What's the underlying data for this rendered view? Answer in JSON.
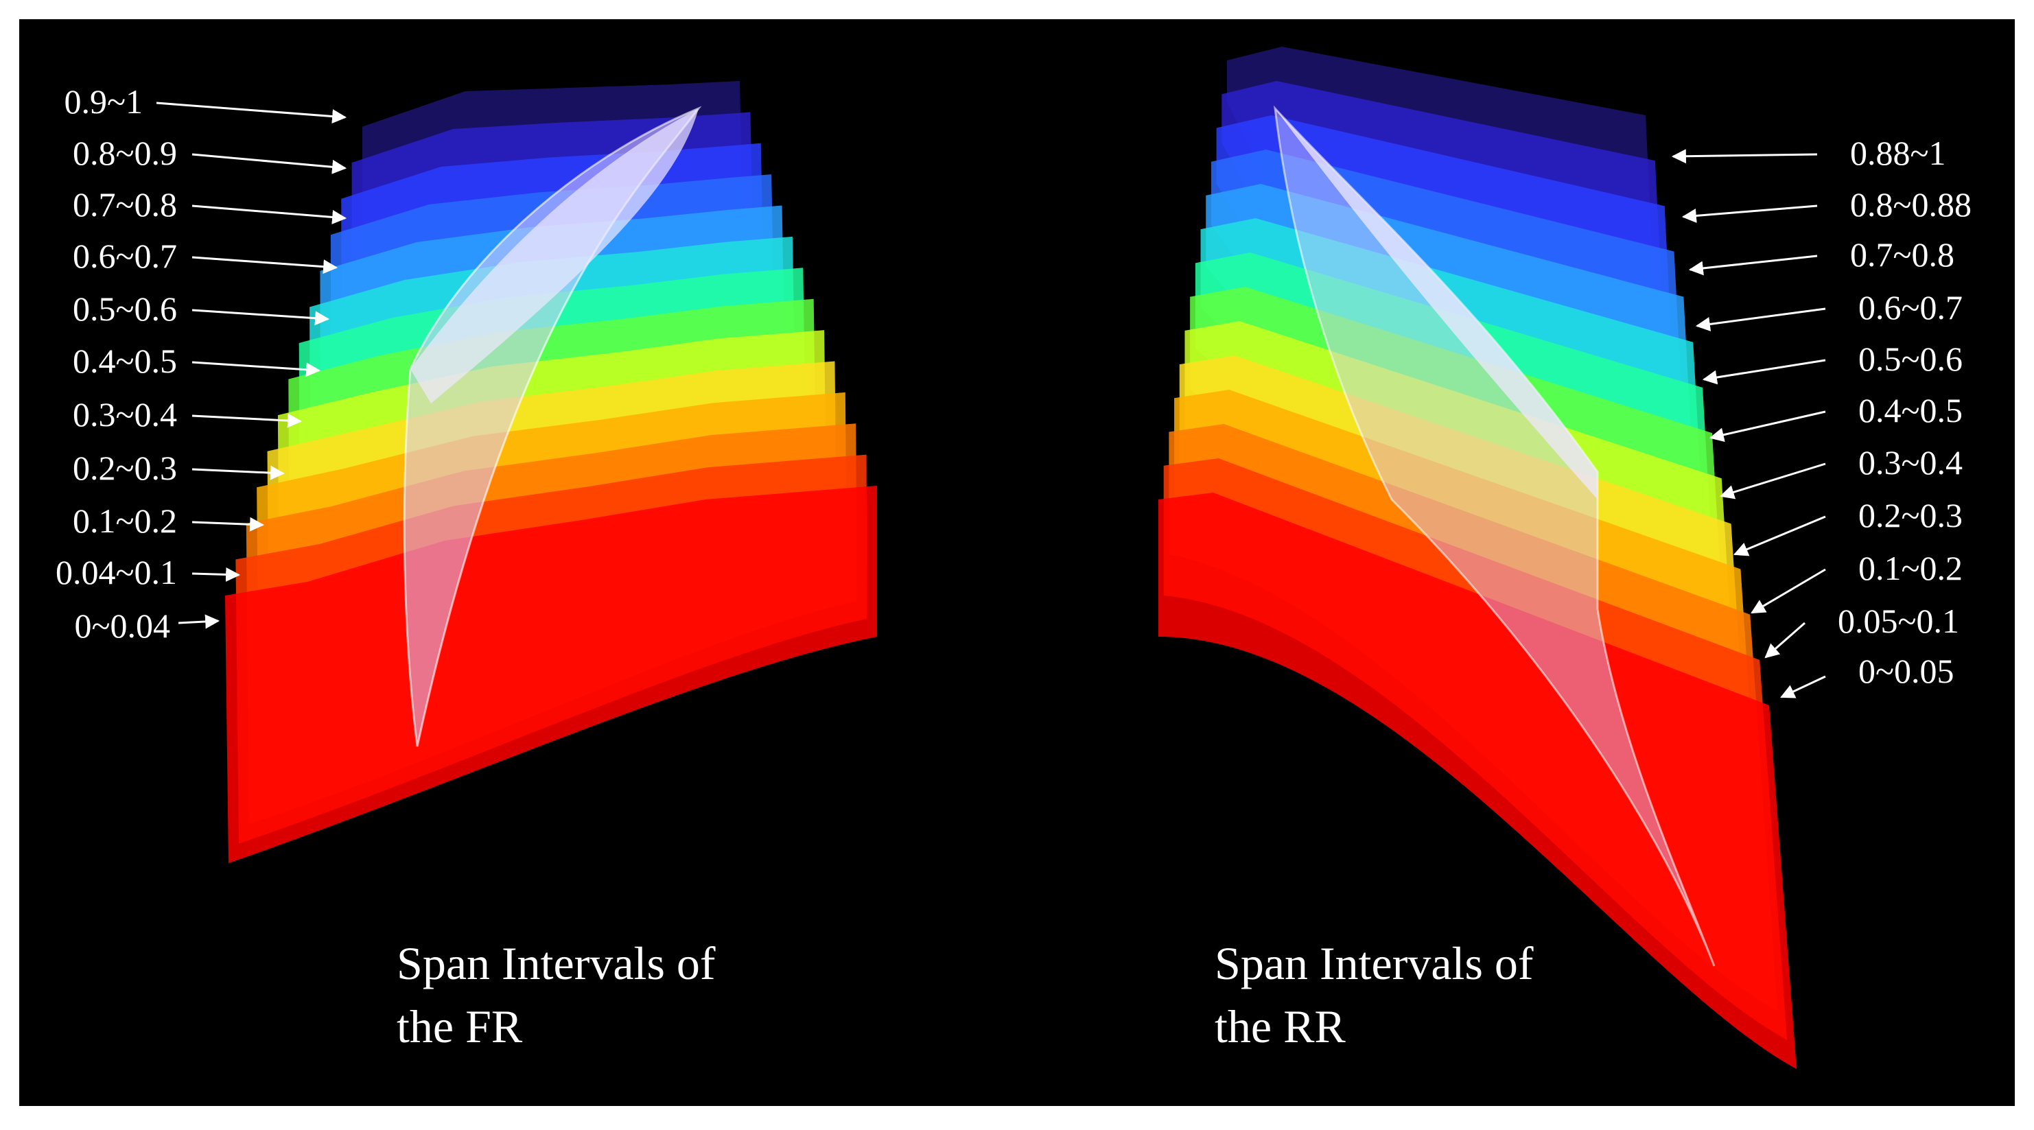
{
  "figure": {
    "background": "#000000",
    "colormap": [
      "#ff0000",
      "#ff3a00",
      "#ff7a00",
      "#ffb000",
      "#ffe020",
      "#c8ff20",
      "#60ff40",
      "#20ffa0",
      "#20e0e0",
      "#2aa0ff",
      "#2a6aff",
      "#2a3cff",
      "#2a20c8",
      "#1c1470"
    ],
    "blade_color": "#d8ccff"
  },
  "panels": [
    {
      "id": "fr",
      "caption_line1": "Span Intervals of",
      "caption_line2": "the FR",
      "labels": [
        "0.9~1",
        "0.8~0.9",
        "0.7~0.8",
        "0.6~0.7",
        "0.5~0.6",
        "0.4~0.5",
        "0.3~0.4",
        "0.2~0.3",
        "0.1~0.2",
        "0.04~0.1",
        "0~0.04"
      ]
    },
    {
      "id": "rr",
      "caption_line1": "Span Intervals of",
      "caption_line2": "the RR",
      "labels": [
        "0.88~1",
        "0.8~0.88",
        "0.7~0.8",
        "0.6~0.7",
        "0.5~0.6",
        "0.4~0.5",
        "0.3~0.4",
        "0.2~0.3",
        "0.1~0.2",
        "0.05~0.1",
        "0~0.05"
      ]
    }
  ]
}
